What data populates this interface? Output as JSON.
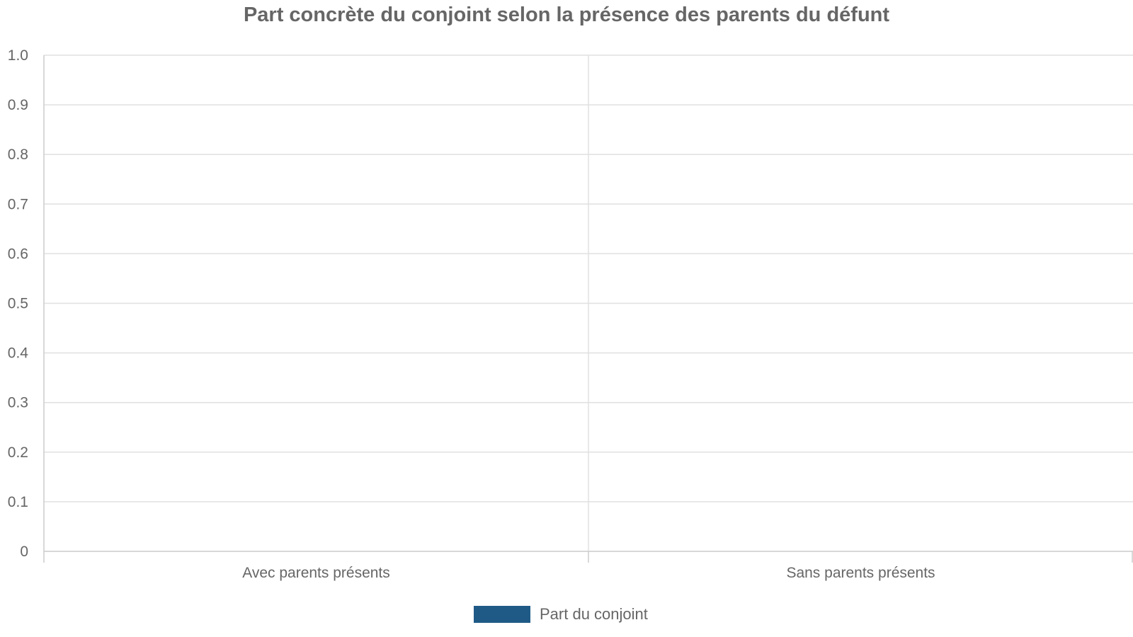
{
  "chart_data": {
    "type": "bar",
    "title": "Part concrète du conjoint selon la présence des parents du défunt",
    "xlabel": "",
    "ylabel": "",
    "categories": [
      "Avec parents présents",
      "Sans parents présents"
    ],
    "series": [
      {
        "name": "Part du conjoint",
        "values": [
          null,
          null
        ],
        "color": "#1f5a87"
      }
    ],
    "ylim": [
      0,
      1
    ],
    "yticks": [
      "0",
      "0.1",
      "0.2",
      "0.3",
      "0.4",
      "0.5",
      "0.6",
      "0.7",
      "0.8",
      "0.9",
      "1.0"
    ],
    "grid": true,
    "legend_position": "bottom-center"
  }
}
